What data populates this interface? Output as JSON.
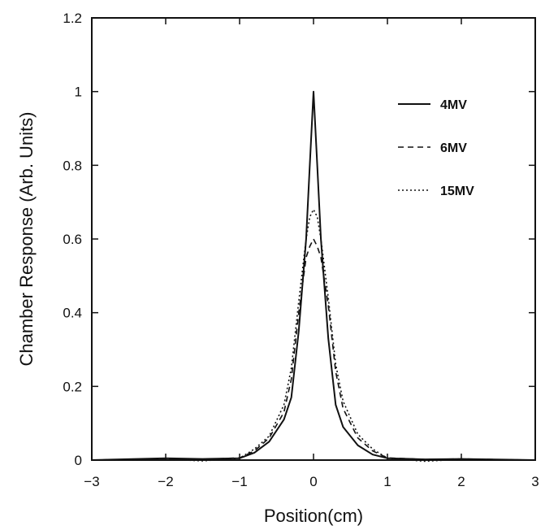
{
  "chart_data": {
    "type": "line",
    "title": "",
    "xlabel": "Position(cm)",
    "ylabel": "Chamber Response (Arb. Units)",
    "xlim": [
      -3,
      3
    ],
    "ylim": [
      0,
      1.2
    ],
    "xticks": [
      -3,
      -2,
      -1,
      0,
      1,
      2,
      3
    ],
    "xtick_labels": [
      "−3",
      "−2",
      "−1",
      "0",
      "1",
      "2",
      "3"
    ],
    "yticks": [
      0,
      0.2,
      0.4,
      0.6,
      0.8,
      1,
      1.2
    ],
    "ytick_labels": [
      "0",
      "0.2",
      "0.4",
      "0.6",
      "0.8",
      "1",
      "1.2"
    ],
    "grid": false,
    "legend_position": "top-right",
    "series": [
      {
        "name": "4MV",
        "style": "solid",
        "x": [
          -3,
          -2,
          -1.5,
          -1,
          -0.8,
          -0.6,
          -0.4,
          -0.3,
          -0.2,
          -0.1,
          -0.05,
          0,
          0.05,
          0.1,
          0.2,
          0.3,
          0.4,
          0.6,
          0.8,
          1,
          1.5,
          2,
          3
        ],
        "y": [
          0,
          0.005,
          0.003,
          0.005,
          0.02,
          0.05,
          0.11,
          0.17,
          0.35,
          0.6,
          0.8,
          1.0,
          0.8,
          0.6,
          0.33,
          0.15,
          0.09,
          0.04,
          0.015,
          0.005,
          0.002,
          0.003,
          0
        ]
      },
      {
        "name": "6MV",
        "style": "dashed",
        "x": [
          -3,
          -2,
          -1.5,
          -1,
          -0.8,
          -0.6,
          -0.4,
          -0.3,
          -0.2,
          -0.1,
          -0.05,
          0,
          0.05,
          0.1,
          0.2,
          0.3,
          0.4,
          0.6,
          0.8,
          1,
          1.5,
          2,
          3
        ],
        "y": [
          0,
          0.003,
          0.002,
          0.006,
          0.025,
          0.06,
          0.13,
          0.22,
          0.4,
          0.55,
          0.58,
          0.6,
          0.58,
          0.55,
          0.42,
          0.24,
          0.14,
          0.06,
          0.025,
          0.006,
          0.002,
          0.003,
          0
        ]
      },
      {
        "name": "15MV",
        "style": "dotted",
        "x": [
          -3,
          -2,
          -1.5,
          -1,
          -0.8,
          -0.6,
          -0.4,
          -0.3,
          -0.2,
          -0.1,
          -0.05,
          0,
          0.05,
          0.1,
          0.2,
          0.3,
          0.4,
          0.6,
          0.8,
          1,
          1.5,
          2,
          3
        ],
        "y": [
          0,
          0.002,
          -0.002,
          0.005,
          0.03,
          0.065,
          0.15,
          0.25,
          0.43,
          0.6,
          0.66,
          0.68,
          0.66,
          0.6,
          0.44,
          0.26,
          0.16,
          0.07,
          0.03,
          0.005,
          -0.003,
          0.002,
          0
        ]
      }
    ]
  }
}
